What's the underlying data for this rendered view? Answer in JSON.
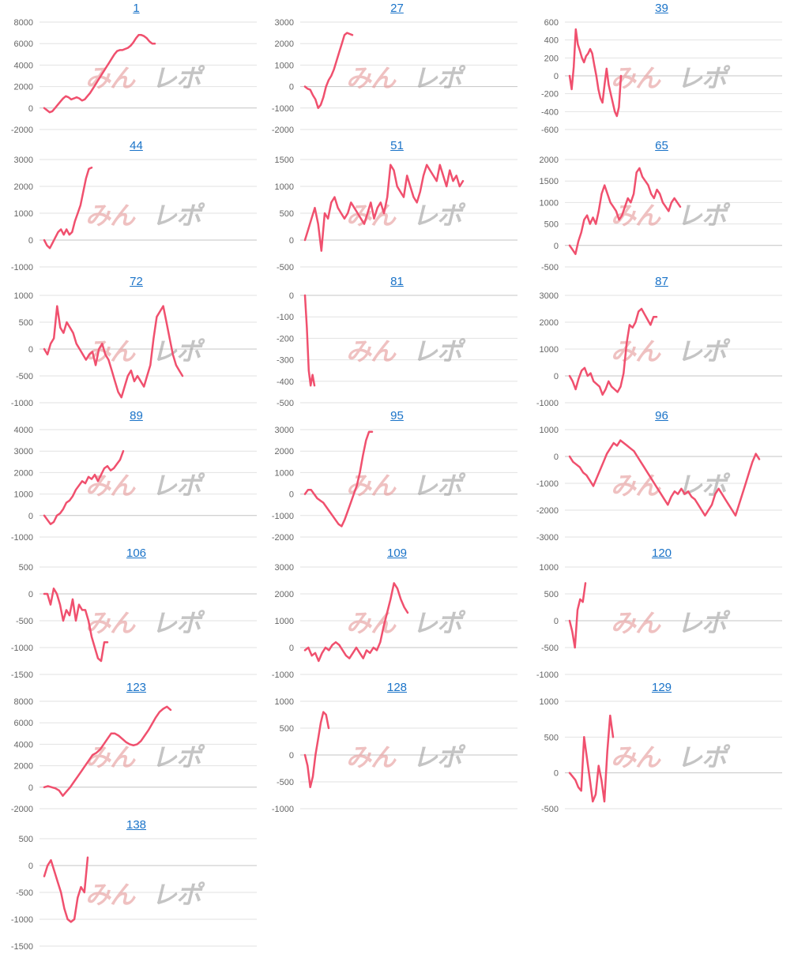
{
  "watermark": {
    "part1": "みん",
    "part2": "レポ"
  },
  "colors": {
    "line": "#f0506e",
    "link": "#1a73c8"
  },
  "chart_data": [
    {
      "type": "line",
      "title": "1",
      "ylim": [
        -2000,
        8000
      ],
      "yticks": [
        -2000,
        0,
        2000,
        4000,
        6000,
        8000
      ],
      "values": [
        0,
        -200,
        -400,
        -300,
        0,
        300,
        600,
        900,
        1100,
        1000,
        800,
        900,
        1000,
        900,
        700,
        800,
        1100,
        1400,
        1800,
        2200,
        2600,
        3000,
        3400,
        3800,
        4200,
        4600,
        5000,
        5300,
        5400,
        5400,
        5500,
        5600,
        5800,
        6100,
        6500,
        6800,
        6800,
        6700,
        6500,
        6200,
        6000,
        6000
      ]
    },
    {
      "type": "line",
      "title": "27",
      "ylim": [
        -2000,
        3000
      ],
      "yticks": [
        -2000,
        -1000,
        0,
        1000,
        2000,
        3000
      ],
      "values": [
        0,
        -100,
        -150,
        -400,
        -600,
        -1000,
        -850,
        -500,
        0,
        300,
        500,
        800,
        1200,
        1600,
        2000,
        2400,
        2500,
        2450,
        2400
      ]
    },
    {
      "type": "line",
      "title": "39",
      "ylim": [
        -600,
        600
      ],
      "yticks": [
        -600,
        -400,
        -200,
        0,
        200,
        400,
        600
      ],
      "values": [
        0,
        -150,
        100,
        520,
        350,
        280,
        200,
        150,
        220,
        250,
        300,
        250,
        120,
        0,
        -150,
        -250,
        -300,
        -100,
        80,
        -100,
        -200,
        -300,
        -400,
        -450,
        -350,
        0
      ]
    },
    {
      "type": "line",
      "title": "44",
      "ylim": [
        -1000,
        3000
      ],
      "yticks": [
        -1000,
        0,
        1000,
        2000,
        3000
      ],
      "values": [
        0,
        -200,
        -300,
        -100,
        100,
        300,
        400,
        200,
        400,
        200,
        300,
        700,
        1000,
        1300,
        1800,
        2300,
        2650,
        2700
      ]
    },
    {
      "type": "line",
      "title": "51",
      "ylim": [
        -500,
        1500
      ],
      "yticks": [
        -500,
        0,
        500,
        1000,
        1500
      ],
      "values": [
        0,
        200,
        400,
        600,
        300,
        -200,
        500,
        400,
        700,
        800,
        600,
        500,
        400,
        500,
        700,
        600,
        500,
        400,
        300,
        500,
        700,
        400,
        600,
        700,
        500,
        800,
        1400,
        1300,
        1000,
        900,
        800,
        1200,
        1000,
        800,
        700,
        900,
        1200,
        1400,
        1300,
        1200,
        1100,
        1400,
        1200,
        1000,
        1300,
        1100,
        1200,
        1000,
        1100
      ]
    },
    {
      "type": "line",
      "title": "65",
      "ylim": [
        -500,
        2000
      ],
      "yticks": [
        -500,
        0,
        500,
        1000,
        1500,
        2000
      ],
      "values": [
        0,
        -100,
        -200,
        100,
        300,
        600,
        700,
        500,
        650,
        500,
        800,
        1200,
        1400,
        1200,
        1000,
        900,
        800,
        600,
        700,
        900,
        1100,
        1000,
        1200,
        1700,
        1800,
        1600,
        1500,
        1400,
        1200,
        1100,
        1300,
        1200,
        1000,
        900,
        800,
        1000,
        1100,
        1000,
        900
      ]
    },
    {
      "type": "line",
      "title": "72",
      "ylim": [
        -1000,
        1000
      ],
      "yticks": [
        -1000,
        -500,
        0,
        500,
        1000
      ],
      "values": [
        0,
        -100,
        100,
        200,
        800,
        400,
        300,
        500,
        400,
        300,
        100,
        0,
        -100,
        -200,
        -100,
        -50,
        -300,
        0,
        100,
        -100,
        -200,
        -400,
        -600,
        -800,
        -900,
        -700,
        -500,
        -400,
        -600,
        -500,
        -600,
        -700,
        -500,
        -300,
        200,
        600,
        700,
        800,
        500,
        200,
        -100,
        -300,
        -400,
        -500
      ]
    },
    {
      "type": "line",
      "title": "81",
      "ylim": [
        -500,
        0
      ],
      "yticks": [
        -500,
        -400,
        -300,
        -200,
        -100,
        0
      ],
      "values": [
        0,
        -150,
        -350,
        -420,
        -370,
        -420
      ]
    },
    {
      "type": "line",
      "title": "87",
      "ylim": [
        -1000,
        3000
      ],
      "yticks": [
        -1000,
        0,
        1000,
        2000,
        3000
      ],
      "values": [
        0,
        -200,
        -500,
        -100,
        200,
        300,
        0,
        100,
        -200,
        -300,
        -400,
        -700,
        -500,
        -200,
        -400,
        -500,
        -600,
        -400,
        100,
        1200,
        1900,
        1800,
        2000,
        2400,
        2500,
        2300,
        2100,
        1900,
        2200,
        2200
      ]
    },
    {
      "type": "line",
      "title": "89",
      "ylim": [
        -1000,
        4000
      ],
      "yticks": [
        -1000,
        0,
        1000,
        2000,
        3000,
        4000
      ],
      "values": [
        0,
        -200,
        -400,
        -300,
        0,
        100,
        300,
        600,
        700,
        900,
        1200,
        1400,
        1600,
        1500,
        1800,
        1700,
        1900,
        1600,
        1900,
        2200,
        2300,
        2100,
        2200,
        2400,
        2600,
        3000
      ]
    },
    {
      "type": "line",
      "title": "95",
      "ylim": [
        -2000,
        3000
      ],
      "yticks": [
        -2000,
        -1000,
        0,
        1000,
        2000,
        3000
      ],
      "values": [
        0,
        200,
        200,
        0,
        -200,
        -300,
        -400,
        -600,
        -800,
        -1000,
        -1200,
        -1400,
        -1500,
        -1200,
        -800,
        -400,
        0,
        400,
        1000,
        1800,
        2500,
        2900,
        2900
      ]
    },
    {
      "type": "line",
      "title": "96",
      "ylim": [
        -3000,
        1000
      ],
      "yticks": [
        -3000,
        -2000,
        -1000,
        0,
        1000
      ],
      "values": [
        0,
        -200,
        -300,
        -400,
        -600,
        -700,
        -900,
        -1100,
        -800,
        -500,
        -200,
        100,
        300,
        500,
        400,
        600,
        500,
        400,
        300,
        200,
        0,
        -200,
        -400,
        -600,
        -800,
        -1000,
        -1200,
        -1400,
        -1600,
        -1800,
        -1500,
        -1300,
        -1400,
        -1200,
        -1400,
        -1300,
        -1500,
        -1600,
        -1800,
        -2000,
        -2200,
        -2000,
        -1800,
        -1400,
        -1200,
        -1400,
        -1600,
        -1800,
        -2000,
        -2200,
        -1800,
        -1400,
        -1000,
        -600,
        -200,
        100,
        -100
      ]
    },
    {
      "type": "line",
      "title": "106",
      "ylim": [
        -1500,
        500
      ],
      "yticks": [
        -1500,
        -1000,
        -500,
        0,
        500
      ],
      "values": [
        0,
        0,
        -200,
        100,
        0,
        -200,
        -500,
        -300,
        -400,
        -100,
        -500,
        -200,
        -300,
        -300,
        -500,
        -800,
        -1000,
        -1200,
        -1250,
        -900,
        -900
      ]
    },
    {
      "type": "line",
      "title": "109",
      "ylim": [
        -1000,
        3000
      ],
      "yticks": [
        -1000,
        0,
        1000,
        2000,
        3000
      ],
      "values": [
        -100,
        0,
        -300,
        -200,
        -500,
        -200,
        0,
        -100,
        100,
        200,
        100,
        -100,
        -300,
        -400,
        -200,
        0,
        -200,
        -400,
        -100,
        -200,
        0,
        -100,
        200,
        800,
        1300,
        1800,
        2400,
        2200,
        1800,
        1500,
        1300
      ]
    },
    {
      "type": "line",
      "title": "120",
      "ylim": [
        -1000,
        1000
      ],
      "yticks": [
        -1000,
        -500,
        0,
        500,
        1000
      ],
      "values": [
        0,
        -200,
        -500,
        200,
        400,
        350,
        700
      ]
    },
    {
      "type": "line",
      "title": "123",
      "ylim": [
        -2000,
        8000
      ],
      "yticks": [
        -2000,
        0,
        2000,
        4000,
        6000,
        8000
      ],
      "values": [
        0,
        100,
        0,
        -100,
        -300,
        -800,
        -400,
        0,
        500,
        1000,
        1500,
        2000,
        2500,
        3000,
        3200,
        3500,
        4000,
        4500,
        5000,
        5000,
        4800,
        4500,
        4200,
        4000,
        3900,
        4000,
        4300,
        4800,
        5300,
        5900,
        6500,
        7000,
        7300,
        7500,
        7200
      ]
    },
    {
      "type": "line",
      "title": "128",
      "ylim": [
        -1000,
        1000
      ],
      "yticks": [
        -1000,
        -500,
        0,
        500,
        1000
      ],
      "values": [
        0,
        -200,
        -600,
        -400,
        0,
        300,
        600,
        800,
        750,
        500
      ]
    },
    {
      "type": "line",
      "title": "129",
      "ylim": [
        -500,
        1000
      ],
      "yticks": [
        -500,
        0,
        500,
        1000
      ],
      "values": [
        0,
        -50,
        -100,
        -200,
        -250,
        500,
        200,
        -100,
        -400,
        -300,
        100,
        -100,
        -400,
        300,
        800,
        500
      ]
    },
    {
      "type": "line",
      "title": "138",
      "ylim": [
        -1500,
        500
      ],
      "yticks": [
        -1500,
        -1000,
        -500,
        0,
        500
      ],
      "values": [
        -200,
        0,
        100,
        -100,
        -300,
        -500,
        -800,
        -1000,
        -1050,
        -1000,
        -600,
        -400,
        -500,
        150
      ]
    }
  ]
}
